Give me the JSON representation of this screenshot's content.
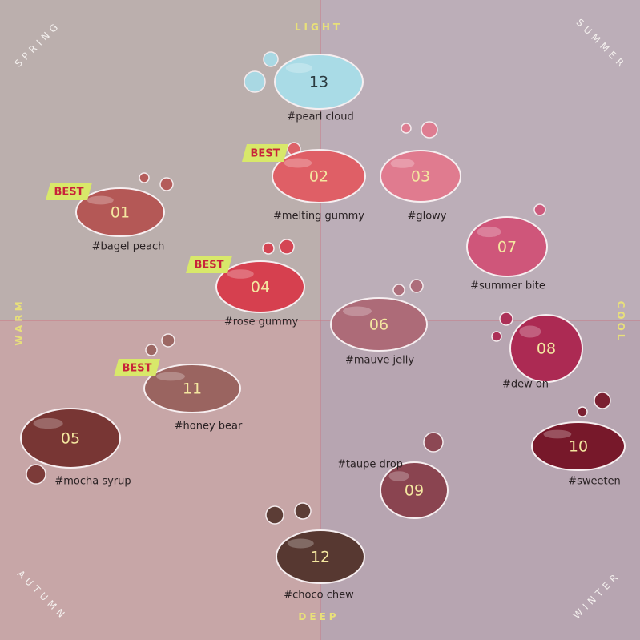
{
  "axes": {
    "top": "LIGHT",
    "bottom": "DEEP",
    "left": "WARM",
    "right": "COOL"
  },
  "corners": {
    "top_left": "SPRING",
    "top_right": "SUMMER",
    "bottom_left": "AUTUMN",
    "bottom_right": "WINTER"
  },
  "items": [
    {
      "number": "13",
      "name": "#pearl cloud",
      "color": "#a9dbe6"
    },
    {
      "number": "02",
      "name": "#melting gummy",
      "color": "#df5f66",
      "badge": "BEST"
    },
    {
      "number": "03",
      "name": "#glowy",
      "color": "#e07b8f"
    },
    {
      "number": "01",
      "name": "#bagel peach",
      "color": "#b45856",
      "badge": "BEST"
    },
    {
      "number": "07",
      "name": "#summer bite",
      "color": "#cf567a"
    },
    {
      "number": "04",
      "name": "#rose gummy",
      "color": "#d6404f",
      "badge": "BEST"
    },
    {
      "number": "06",
      "name": "#mauve jelly",
      "color": "#ad6b78"
    },
    {
      "number": "08",
      "name": "#dew on",
      "color": "#ac2a53"
    },
    {
      "number": "11",
      "name": "#honey bear",
      "color": "#9a6460",
      "badge": "BEST"
    },
    {
      "number": "05",
      "name": "#mocha syrup",
      "color": "#783634"
    },
    {
      "number": "10",
      "name": "#sweeten",
      "color": "#77182a"
    },
    {
      "number": "09",
      "name": "#taupe drop",
      "color": "#8a4450"
    },
    {
      "number": "12",
      "name": "#choco chew",
      "color": "#573831"
    }
  ]
}
